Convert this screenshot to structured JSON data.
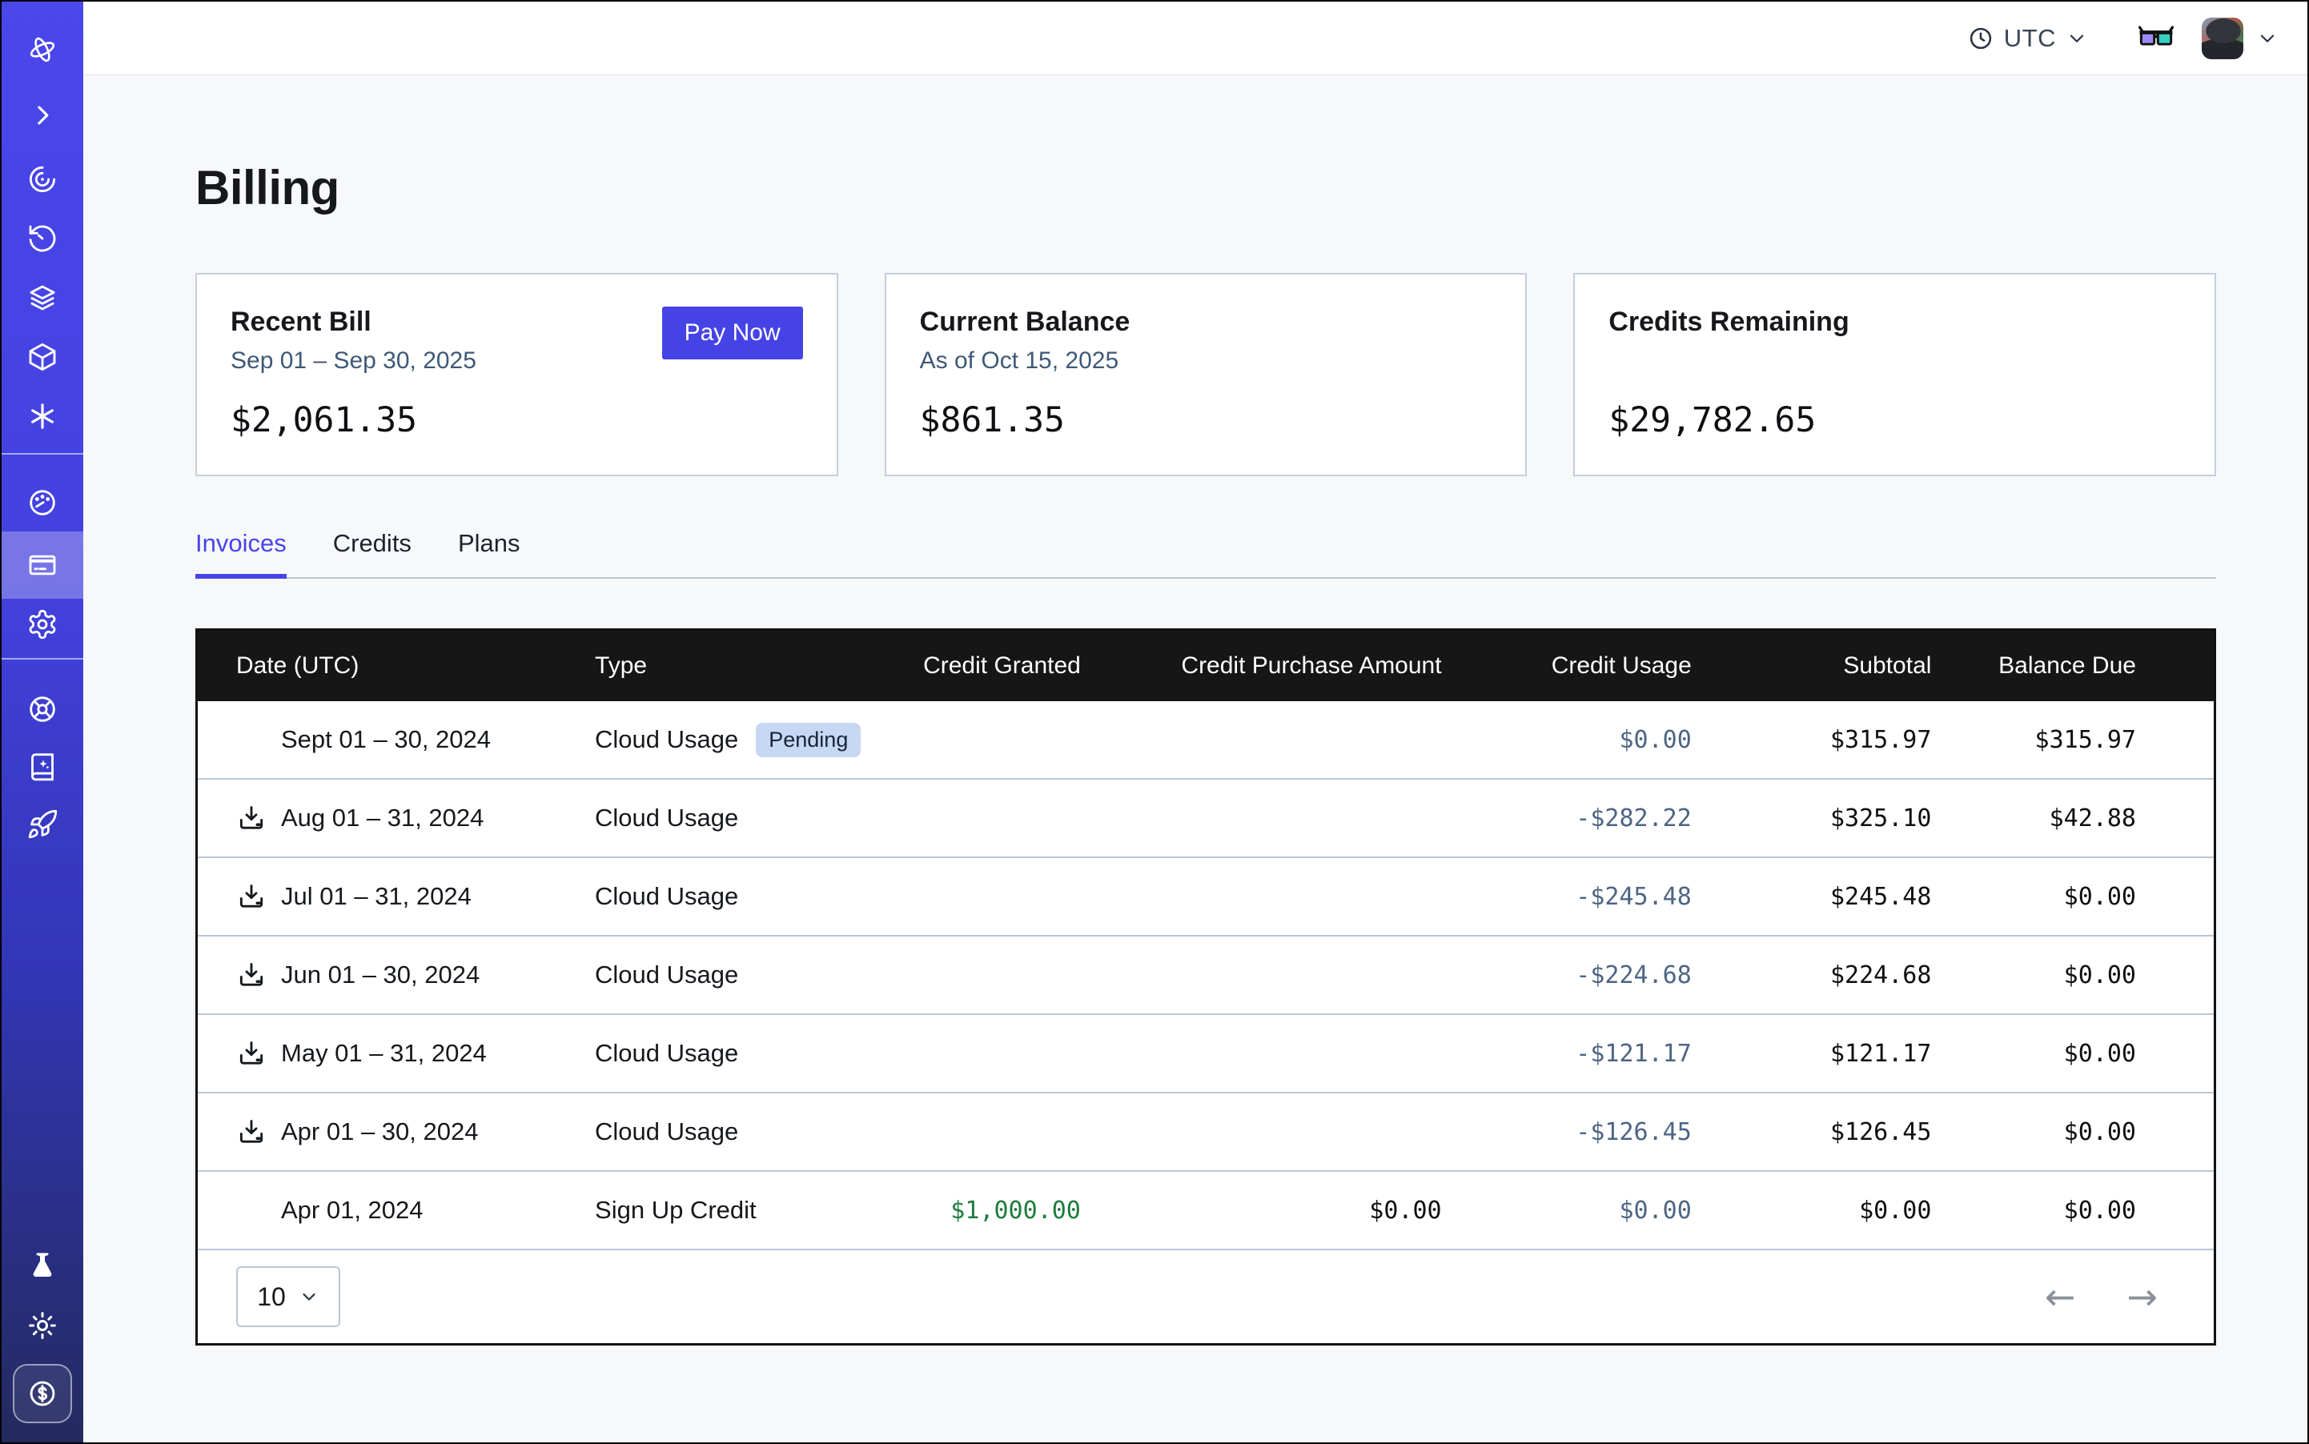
{
  "topbar": {
    "timezone_label": "UTC",
    "icons": [
      "clock-icon",
      "chevron-down-icon",
      "3d-glasses-icon",
      "avatar",
      "chevron-down-icon"
    ]
  },
  "sidebar": {
    "icons_top": [
      "orbit-logo-icon",
      "chevron-right-icon",
      "spiral-icon",
      "history-icon",
      "layers-icon",
      "cube-icon",
      "asterisk-icon"
    ],
    "icons_middle": [
      "gauge-icon",
      "credit-card-icon",
      "gear-icon"
    ],
    "icons_support": [
      "wheel-icon",
      "book-sparkle-icon",
      "rocket-icon"
    ],
    "icons_bottom": [
      "flask-icon",
      "sun-icon",
      "dollar-badge-icon"
    ],
    "active_item": "credit-card-icon"
  },
  "page": {
    "title": "Billing"
  },
  "cards": [
    {
      "title": "Recent Bill",
      "subtitle": "Sep 01 – Sep 30, 2025",
      "amount": "$2,061.35",
      "action_label": "Pay Now"
    },
    {
      "title": "Current Balance",
      "subtitle": "As of Oct 15, 2025",
      "amount": "$861.35"
    },
    {
      "title": "Credits Remaining",
      "subtitle": "",
      "amount": "$29,782.65"
    }
  ],
  "tabs": {
    "items": [
      {
        "label": "Invoices",
        "active": true
      },
      {
        "label": "Credits",
        "active": false
      },
      {
        "label": "Plans",
        "active": false
      }
    ]
  },
  "table": {
    "columns": [
      "Date (UTC)",
      "Type",
      "Credit Granted",
      "Credit Purchase Amount",
      "Credit Usage",
      "Subtotal",
      "Balance Due"
    ],
    "rows": [
      {
        "date": "Sept 01 – 30, 2024",
        "has_download": false,
        "type": "Cloud Usage",
        "badge": "Pending",
        "credit_granted": "",
        "credit_purchase_amount": "",
        "credit_usage": "$0.00",
        "subtotal": "$315.97",
        "balance_due": "$315.97"
      },
      {
        "date": "Aug 01 – 31, 2024",
        "has_download": true,
        "type": "Cloud Usage",
        "credit_granted": "",
        "credit_purchase_amount": "",
        "credit_usage": "-$282.22",
        "subtotal": "$325.10",
        "balance_due": "$42.88"
      },
      {
        "date": "Jul 01 – 31, 2024",
        "has_download": true,
        "type": "Cloud Usage",
        "credit_granted": "",
        "credit_purchase_amount": "",
        "credit_usage": "-$245.48",
        "subtotal": "$245.48",
        "balance_due": "$0.00"
      },
      {
        "date": "Jun 01 – 30, 2024",
        "has_download": true,
        "type": "Cloud Usage",
        "credit_granted": "",
        "credit_purchase_amount": "",
        "credit_usage": "-$224.68",
        "subtotal": "$224.68",
        "balance_due": "$0.00"
      },
      {
        "date": "May 01 – 31, 2024",
        "has_download": true,
        "type": "Cloud Usage",
        "credit_granted": "",
        "credit_purchase_amount": "",
        "credit_usage": "-$121.17",
        "subtotal": "$121.17",
        "balance_due": "$0.00"
      },
      {
        "date": "Apr 01 – 30, 2024",
        "has_download": true,
        "type": "Cloud Usage",
        "credit_granted": "",
        "credit_purchase_amount": "",
        "credit_usage": "-$126.45",
        "subtotal": "$126.45",
        "balance_due": "$0.00"
      },
      {
        "date": "Apr 01, 2024",
        "has_download": false,
        "type": "Sign Up Credit",
        "credit_granted": "$1,000.00",
        "credit_purchase_amount": "$0.00",
        "credit_usage": "$0.00",
        "subtotal": "$0.00",
        "balance_due": "$0.00"
      }
    ],
    "pagination": {
      "page_size": "10"
    }
  },
  "colors": {
    "accent_indigo": "#4643E6",
    "sidebar_top": "#4A47EB",
    "sidebar_bottom": "#232A5E",
    "table_header_bg": "#161616",
    "credit_usage_blue": "#4D6584",
    "credit_granted_green": "#1E7C3D",
    "badge_bg": "#C7D8F2",
    "row_divider": "#B7C7DB"
  }
}
